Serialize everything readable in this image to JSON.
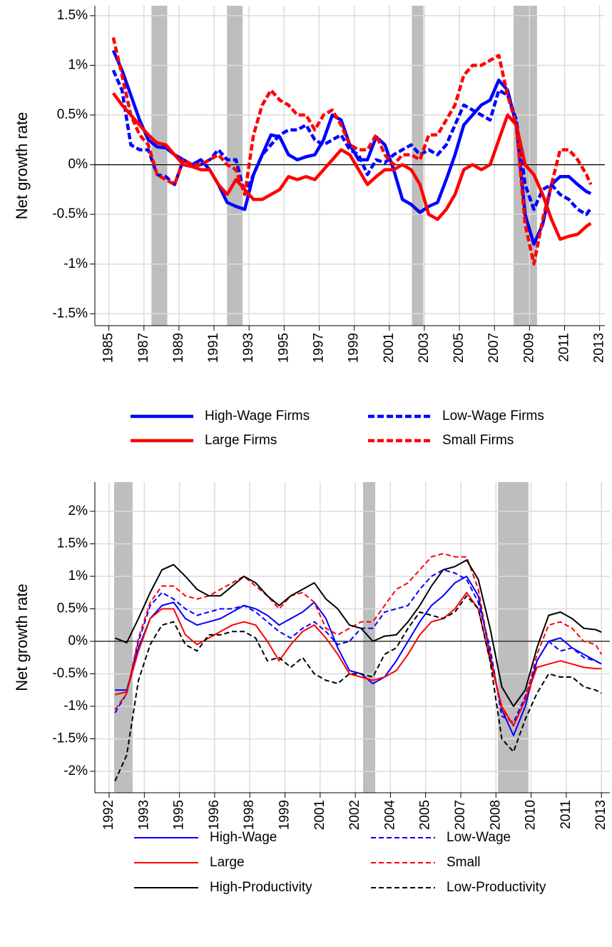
{
  "chart_data": [
    {
      "type": "line",
      "ylabel": "Net growth rate",
      "grid": true,
      "reference_line": 0,
      "legend": "bottom",
      "xlim": [
        1984.2,
        2013.3
      ],
      "ylim": [
        -1.62,
        1.6
      ],
      "xticks": [
        1985,
        1987,
        1989,
        1991,
        1993,
        1995,
        1997,
        1999,
        2001,
        2003,
        2005,
        2007,
        2009,
        2011,
        2013
      ],
      "yticks": [
        {
          "value": -1.5,
          "label": "-1.5%"
        },
        {
          "value": -1,
          "label": "-1%"
        },
        {
          "value": -0.5,
          "label": "-0.5%"
        },
        {
          "value": 0,
          "label": "0%"
        },
        {
          "value": 0.5,
          "label": "0.5%"
        },
        {
          "value": 1,
          "label": "1%"
        },
        {
          "value": 1.5,
          "label": "1.5%"
        }
      ],
      "shaded_periods": [
        [
          1987.43,
          1988.33
        ],
        [
          1991.74,
          1992.63
        ],
        [
          2002.29,
          2002.94
        ],
        [
          2008.09,
          2009.43
        ]
      ],
      "x": [
        1985.25,
        1985.75,
        1986.25,
        1986.75,
        1987.25,
        1987.75,
        1988.25,
        1988.75,
        1989.25,
        1989.75,
        1990.25,
        1990.75,
        1991.25,
        1991.75,
        1992.25,
        1992.75,
        1993.25,
        1993.75,
        1994.25,
        1994.75,
        1995.25,
        1995.75,
        1996.25,
        1996.75,
        1997.25,
        1997.75,
        1998.25,
        1998.75,
        1999.25,
        1999.75,
        2000.25,
        2000.75,
        2001.25,
        2001.75,
        2002.25,
        2002.75,
        2003.25,
        2003.75,
        2004.25,
        2004.75,
        2005.25,
        2005.75,
        2006.25,
        2006.75,
        2007.25,
        2007.75,
        2008.25,
        2008.75,
        2009.25,
        2009.75,
        2010.25,
        2010.75,
        2011.25,
        2011.75,
        2012.25,
        2012.5
      ],
      "series": [
        {
          "name": "High-Wage Firms",
          "color": "#0000ff",
          "dashed": false,
          "values": [
            1.15,
            0.95,
            0.7,
            0.45,
            0.25,
            0.18,
            0.17,
            0.1,
            0.05,
            0.0,
            0.05,
            -0.05,
            -0.2,
            -0.38,
            -0.42,
            -0.45,
            -0.1,
            0.1,
            0.3,
            0.28,
            0.1,
            0.05,
            0.08,
            0.1,
            0.25,
            0.5,
            0.45,
            0.2,
            0.05,
            0.05,
            0.28,
            0.2,
            -0.05,
            -0.35,
            -0.4,
            -0.48,
            -0.42,
            -0.38,
            -0.15,
            0.1,
            0.4,
            0.5,
            0.6,
            0.65,
            0.85,
            0.75,
            0.4,
            -0.5,
            -0.8,
            -0.6,
            -0.2,
            -0.12,
            -0.12,
            -0.2,
            -0.27,
            -0.29
          ]
        },
        {
          "name": "Low-Wage Firms",
          "color": "#0000ff",
          "dashed": true,
          "values": [
            0.95,
            0.75,
            0.2,
            0.15,
            0.15,
            -0.1,
            -0.12,
            -0.2,
            0.05,
            -0.02,
            0.0,
            0.05,
            0.15,
            0.05,
            0.05,
            -0.3,
            -0.1,
            0.1,
            0.2,
            0.3,
            0.35,
            0.35,
            0.4,
            0.25,
            0.2,
            0.25,
            0.3,
            0.15,
            0.1,
            -0.1,
            0.05,
            0.02,
            0.1,
            0.15,
            0.2,
            0.1,
            0.15,
            0.1,
            0.2,
            0.4,
            0.6,
            0.55,
            0.5,
            0.45,
            0.75,
            0.7,
            0.45,
            -0.2,
            -0.45,
            -0.25,
            -0.2,
            -0.3,
            -0.35,
            -0.45,
            -0.5,
            -0.44
          ]
        },
        {
          "name": "Large Firms",
          "color": "#ff0000",
          "dashed": false,
          "values": [
            0.72,
            0.6,
            0.5,
            0.4,
            0.3,
            0.22,
            0.2,
            0.1,
            0.0,
            -0.02,
            -0.05,
            -0.05,
            -0.2,
            -0.3,
            -0.15,
            -0.25,
            -0.35,
            -0.35,
            -0.3,
            -0.25,
            -0.12,
            -0.15,
            -0.12,
            -0.15,
            -0.05,
            0.05,
            0.15,
            0.1,
            -0.05,
            -0.2,
            -0.12,
            -0.05,
            -0.05,
            0.0,
            -0.05,
            -0.2,
            -0.5,
            -0.55,
            -0.45,
            -0.3,
            -0.05,
            0.0,
            -0.05,
            0.0,
            0.25,
            0.5,
            0.4,
            0.0,
            -0.1,
            -0.3,
            -0.55,
            -0.75,
            -0.72,
            -0.7,
            -0.62,
            -0.59
          ]
        },
        {
          "name": "Small Firms",
          "color": "#ff0000",
          "dashed": true,
          "values": [
            1.28,
            0.9,
            0.5,
            0.3,
            0.2,
            -0.1,
            -0.15,
            -0.2,
            0.05,
            0.0,
            0.0,
            0.05,
            0.1,
            0.0,
            -0.05,
            -0.3,
            0.3,
            0.6,
            0.75,
            0.65,
            0.6,
            0.5,
            0.5,
            0.35,
            0.5,
            0.55,
            0.4,
            0.2,
            0.15,
            0.15,
            0.3,
            0.1,
            0.0,
            0.1,
            0.1,
            0.05,
            0.3,
            0.3,
            0.45,
            0.6,
            0.9,
            1.0,
            1.0,
            1.05,
            1.1,
            0.7,
            0.4,
            -0.6,
            -1.0,
            -0.55,
            -0.2,
            0.15,
            0.15,
            0.05,
            -0.1,
            -0.2
          ]
        }
      ]
    },
    {
      "type": "line",
      "ylabel": "Net growth rate",
      "grid": true,
      "reference_line": 0,
      "legend": "bottom",
      "xlim": [
        1991.39,
        2013.36
      ],
      "ylim": [
        -2.33,
        2.45
      ],
      "xticks": [
        1992,
        {
          "value": 1993.5,
          "label": "1993"
        },
        1995,
        {
          "value": 1996.5,
          "label": "1996"
        },
        1998,
        {
          "value": 1999.5,
          "label": "1999"
        },
        2001,
        {
          "value": 2002.5,
          "label": "2002"
        },
        2004,
        {
          "value": 2005.5,
          "label": "2005"
        },
        2007,
        {
          "value": 2008.5,
          "label": "2008"
        },
        2010,
        {
          "value": 2011.5,
          "label": "2011"
        },
        2013
      ],
      "yticks": [
        {
          "value": -2,
          "label": "-2%"
        },
        {
          "value": -1.5,
          "label": "-1.5%"
        },
        {
          "value": -1,
          "label": "-1%"
        },
        {
          "value": -0.5,
          "label": "-0.5%"
        },
        {
          "value": 0,
          "label": "0%"
        },
        {
          "value": 0.5,
          "label": "0.5%"
        },
        {
          "value": 1,
          "label": "1%"
        },
        {
          "value": 1.5,
          "label": "1.5%"
        },
        {
          "value": 2,
          "label": "2%"
        }
      ],
      "shaded_periods": [
        [
          1992.21,
          1993.0
        ],
        [
          2002.83,
          2003.35
        ],
        [
          2008.59,
          2009.89
        ]
      ],
      "x": [
        1992.25,
        1992.75,
        1993.25,
        1993.75,
        1994.25,
        1994.75,
        1995.25,
        1995.75,
        1996.25,
        1996.75,
        1997.25,
        1997.75,
        1998.25,
        1998.75,
        1999.25,
        1999.75,
        2000.25,
        2000.75,
        2001.25,
        2001.75,
        2002.25,
        2002.75,
        2003.25,
        2003.75,
        2004.25,
        2004.75,
        2005.25,
        2005.75,
        2006.25,
        2006.75,
        2007.25,
        2007.75,
        2008.25,
        2008.75,
        2009.25,
        2009.75,
        2010.25,
        2010.75,
        2011.25,
        2011.75,
        2012.25,
        2012.75,
        2013
      ],
      "series": [
        {
          "name": "High-Wage",
          "color": "#0000ff",
          "dashed": false,
          "values": [
            -0.75,
            -0.75,
            -0.1,
            0.35,
            0.55,
            0.6,
            0.35,
            0.25,
            0.3,
            0.35,
            0.45,
            0.55,
            0.5,
            0.4,
            0.25,
            0.35,
            0.45,
            0.6,
            0.35,
            -0.1,
            -0.45,
            -0.5,
            -0.65,
            -0.55,
            -0.3,
            0.0,
            0.3,
            0.55,
            0.7,
            0.9,
            1.0,
            0.7,
            -0.2,
            -1.05,
            -1.45,
            -1.0,
            -0.3,
            0.0,
            0.05,
            -0.1,
            -0.2,
            -0.3,
            -0.35
          ]
        },
        {
          "name": "Low-Wage",
          "color": "#0000ff",
          "dashed": true,
          "values": [
            -1.1,
            -0.8,
            0.0,
            0.55,
            0.75,
            0.65,
            0.5,
            0.4,
            0.45,
            0.5,
            0.5,
            0.55,
            0.45,
            0.3,
            0.15,
            0.05,
            0.2,
            0.3,
            0.15,
            -0.05,
            0.0,
            0.2,
            0.2,
            0.45,
            0.5,
            0.55,
            0.8,
            1.0,
            1.1,
            1.05,
            0.95,
            0.6,
            -0.1,
            -1.15,
            -1.25,
            -0.85,
            -0.3,
            0.0,
            -0.15,
            -0.1,
            -0.25,
            -0.3,
            -0.35
          ]
        },
        {
          "name": "Large",
          "color": "#ff0000",
          "dashed": false,
          "values": [
            -0.82,
            -0.78,
            -0.15,
            0.35,
            0.5,
            0.5,
            0.1,
            -0.05,
            0.05,
            0.15,
            0.25,
            0.3,
            0.25,
            0.0,
            -0.3,
            -0.05,
            0.15,
            0.25,
            0.05,
            -0.2,
            -0.5,
            -0.55,
            -0.6,
            -0.55,
            -0.45,
            -0.2,
            0.1,
            0.3,
            0.35,
            0.5,
            0.75,
            0.5,
            -0.3,
            -1.0,
            -1.3,
            -0.9,
            -0.4,
            -0.35,
            -0.3,
            -0.35,
            -0.4,
            -0.42,
            -0.42
          ]
        },
        {
          "name": "Small",
          "color": "#ff0000",
          "dashed": true,
          "values": [
            -1.05,
            -0.8,
            0.05,
            0.6,
            0.85,
            0.85,
            0.7,
            0.65,
            0.7,
            0.8,
            0.9,
            1.0,
            0.85,
            0.7,
            0.5,
            0.7,
            0.75,
            0.6,
            0.2,
            0.1,
            0.2,
            0.3,
            0.3,
            0.55,
            0.8,
            0.9,
            1.1,
            1.3,
            1.35,
            1.3,
            1.3,
            0.8,
            -0.2,
            -1.05,
            -1.3,
            -0.9,
            -0.2,
            0.25,
            0.3,
            0.2,
            0.0,
            -0.05,
            -0.2
          ]
        },
        {
          "name": "High-Productivity",
          "color": "#000000",
          "dashed": false,
          "values": [
            0.05,
            -0.02,
            0.35,
            0.75,
            1.1,
            1.18,
            1.0,
            0.8,
            0.7,
            0.7,
            0.85,
            1.0,
            0.9,
            0.7,
            0.55,
            0.7,
            0.8,
            0.9,
            0.65,
            0.5,
            0.25,
            0.2,
            0.0,
            0.08,
            0.1,
            0.3,
            0.55,
            0.85,
            1.1,
            1.15,
            1.25,
            0.95,
            0.2,
            -0.7,
            -1.0,
            -0.75,
            -0.1,
            0.4,
            0.45,
            0.35,
            0.2,
            0.18,
            0.14
          ]
        },
        {
          "name": "Low-Productivity",
          "color": "#000000",
          "dashed": true,
          "values": [
            -2.15,
            -1.75,
            -0.6,
            -0.05,
            0.25,
            0.3,
            -0.05,
            -0.15,
            0.1,
            0.1,
            0.15,
            0.15,
            0.05,
            -0.3,
            -0.25,
            -0.4,
            -0.25,
            -0.5,
            -0.6,
            -0.65,
            -0.5,
            -0.5,
            -0.55,
            -0.2,
            -0.1,
            0.2,
            0.45,
            0.4,
            0.35,
            0.45,
            0.7,
            0.5,
            -0.3,
            -1.5,
            -1.7,
            -1.2,
            -0.8,
            -0.5,
            -0.55,
            -0.55,
            -0.7,
            -0.75,
            -0.8
          ]
        }
      ]
    }
  ]
}
